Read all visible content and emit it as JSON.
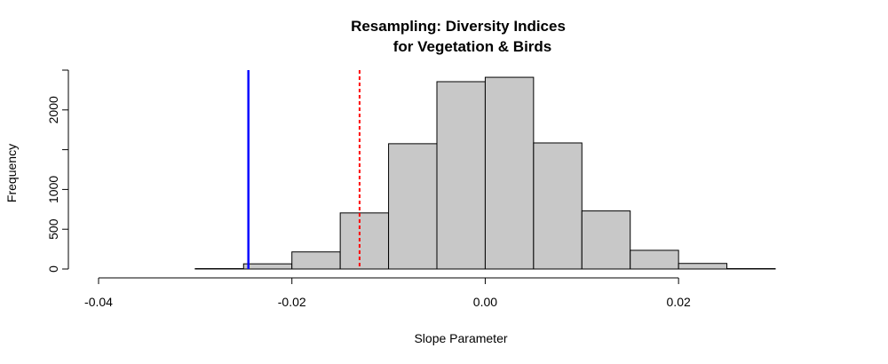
{
  "chart_data": {
    "type": "bar",
    "title_lines": [
      "Resampling: Diversity Indices",
      "for Vegetation & Birds"
    ],
    "xlabel": "Slope Parameter",
    "ylabel": "Frequency",
    "xlim": [
      -0.04,
      0.03
    ],
    "ylim": [
      0,
      2500
    ],
    "x_ticks": [
      {
        "value": -0.04,
        "label": "-0.04"
      },
      {
        "value": -0.02,
        "label": "-0.02"
      },
      {
        "value": 0.0,
        "label": "0.00"
      },
      {
        "value": 0.02,
        "label": "0.02"
      }
    ],
    "y_ticks": [
      {
        "value": 0,
        "label": "0"
      },
      {
        "value": 500,
        "label": "500"
      },
      {
        "value": 1000,
        "label": "1000"
      },
      {
        "value": 2000,
        "label": "2000"
      }
    ],
    "y_minor_ticks": [
      1500,
      2500
    ],
    "bins": [
      {
        "start": -0.04,
        "end": -0.035,
        "count": 0
      },
      {
        "start": -0.035,
        "end": -0.03,
        "count": 0
      },
      {
        "start": -0.03,
        "end": -0.025,
        "count": 5
      },
      {
        "start": -0.025,
        "end": -0.02,
        "count": 65
      },
      {
        "start": -0.02,
        "end": -0.015,
        "count": 215
      },
      {
        "start": -0.015,
        "end": -0.01,
        "count": 705
      },
      {
        "start": -0.01,
        "end": -0.005,
        "count": 1575
      },
      {
        "start": -0.005,
        "end": 0.0,
        "count": 2355
      },
      {
        "start": 0.0,
        "end": 0.005,
        "count": 2410
      },
      {
        "start": 0.005,
        "end": 0.01,
        "count": 1585
      },
      {
        "start": 0.01,
        "end": 0.015,
        "count": 730
      },
      {
        "start": 0.015,
        "end": 0.02,
        "count": 235
      },
      {
        "start": 0.02,
        "end": 0.025,
        "count": 70
      },
      {
        "start": 0.025,
        "end": 0.03,
        "count": 5
      }
    ],
    "reference_lines": [
      {
        "x": -0.0245,
        "color": "#0000ff",
        "style": "solid"
      },
      {
        "x": -0.013,
        "color": "#ff0000",
        "style": "dashed"
      }
    ],
    "bar_fill": "#c8c8c8",
    "grid": false,
    "legend": "none"
  }
}
